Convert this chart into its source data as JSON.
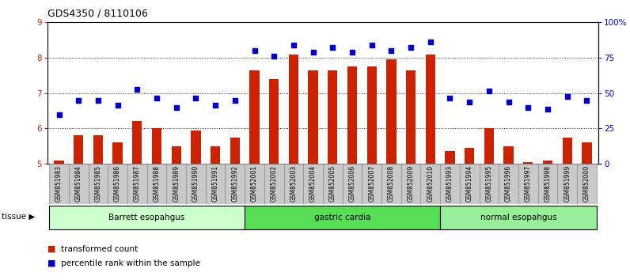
{
  "title": "GDS4350 / 8110106",
  "samples": [
    "GSM851983",
    "GSM851984",
    "GSM851985",
    "GSM851986",
    "GSM851987",
    "GSM851988",
    "GSM851989",
    "GSM851990",
    "GSM851991",
    "GSM851992",
    "GSM852001",
    "GSM852002",
    "GSM852003",
    "GSM852004",
    "GSM852005",
    "GSM852006",
    "GSM852007",
    "GSM852008",
    "GSM852009",
    "GSM852010",
    "GSM851993",
    "GSM851994",
    "GSM851995",
    "GSM851996",
    "GSM851997",
    "GSM851998",
    "GSM851999",
    "GSM852000"
  ],
  "bar_values": [
    5.1,
    5.8,
    5.8,
    5.6,
    6.2,
    6.0,
    5.5,
    5.95,
    5.5,
    5.75,
    7.65,
    7.4,
    8.1,
    7.65,
    7.65,
    7.75,
    7.75,
    7.95,
    7.65,
    8.1,
    5.35,
    5.45,
    6.0,
    5.5,
    5.05,
    5.1,
    5.75,
    5.6
  ],
  "dot_values": [
    6.4,
    6.8,
    6.8,
    6.65,
    7.1,
    6.85,
    6.6,
    6.85,
    6.65,
    6.8,
    8.2,
    8.05,
    8.35,
    8.15,
    8.3,
    8.15,
    8.35,
    8.2,
    8.3,
    8.45,
    6.85,
    6.75,
    7.05,
    6.75,
    6.6,
    6.55,
    6.9,
    6.8
  ],
  "groups": [
    {
      "label": "Barrett esopahgus",
      "start": 0,
      "end": 10,
      "color": "#ccffcc"
    },
    {
      "label": "gastric cardia",
      "start": 10,
      "end": 20,
      "color": "#55dd55"
    },
    {
      "label": "normal esopahgus",
      "start": 20,
      "end": 28,
      "color": "#99ee99"
    }
  ],
  "ylim": [
    5,
    9
  ],
  "yticks_left": [
    5,
    6,
    7,
    8,
    9
  ],
  "yticks_right": [
    0,
    25,
    50,
    75,
    100
  ],
  "right_labels": [
    "0",
    "25",
    "50",
    "75",
    "100%"
  ],
  "grid_lines": [
    6,
    7,
    8
  ],
  "bar_color": "#cc2200",
  "dot_color": "#0000cc",
  "bar_bottom": 5,
  "tick_bg_color": "#c8c8c8",
  "tick_border_color": "#888888"
}
